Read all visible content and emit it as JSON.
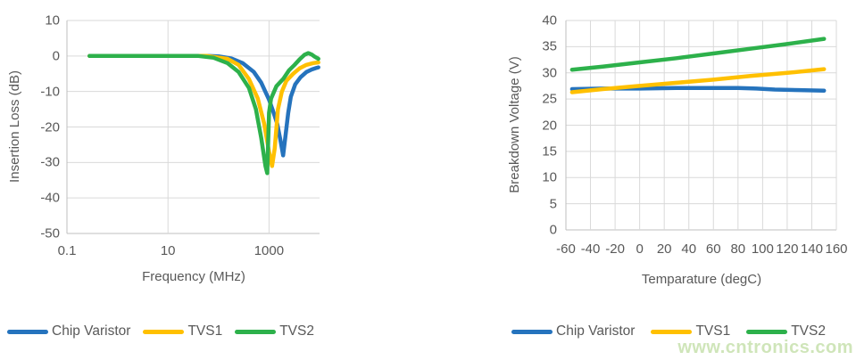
{
  "page": {
    "background": "#ffffff"
  },
  "watermark": {
    "text": "www.cntronics.com",
    "color": "#cde4b6"
  },
  "styles": {
    "grid_color": "#d9d9d9",
    "axis_line_color": "#bfbfbf",
    "text_color": "#595959"
  },
  "chart_data": [
    {
      "type": "line",
      "title": "",
      "xlabel": "Frequency (MHz)",
      "ylabel": "Insertion Loss (dB)",
      "x_scale": "log",
      "xlim": [
        0.1,
        10000
      ],
      "ylim": [
        -50,
        10
      ],
      "x_ticks": [
        0.1,
        10,
        1000
      ],
      "x_tick_labels": [
        "0.1",
        "10",
        "1000"
      ],
      "y_ticks": [
        10,
        0,
        -10,
        -20,
        -30,
        -40,
        -50
      ],
      "y_tick_labels": [
        "10",
        "0",
        "-10",
        "-20",
        "-30",
        "-40",
        "-50"
      ],
      "grid": "on",
      "legend_position": "bottom",
      "series": [
        {
          "name": "Chip Varistor",
          "color": "#2573BD",
          "points": [
            [
              0.28,
              0
            ],
            [
              1,
              0
            ],
            [
              10,
              0
            ],
            [
              60,
              0
            ],
            [
              100,
              -0.1
            ],
            [
              180,
              -0.7
            ],
            [
              300,
              -2
            ],
            [
              500,
              -4.5
            ],
            [
              700,
              -7.5
            ],
            [
              1000,
              -12.3
            ],
            [
              1200,
              -15.5
            ],
            [
              1450,
              -19
            ],
            [
              1700,
              -24
            ],
            [
              1900,
              -28
            ],
            [
              2100,
              -23
            ],
            [
              2400,
              -16
            ],
            [
              2700,
              -11.5
            ],
            [
              3300,
              -8
            ],
            [
              4200,
              -6
            ],
            [
              5500,
              -4.5
            ],
            [
              7000,
              -3.8
            ],
            [
              8500,
              -3.4
            ],
            [
              9500,
              -3.2
            ]
          ]
        },
        {
          "name": "TVS1",
          "color": "#FFC000",
          "points": [
            [
              0.28,
              0
            ],
            [
              1,
              0
            ],
            [
              10,
              0
            ],
            [
              60,
              0
            ],
            [
              150,
              -0.8
            ],
            [
              250,
              -2.5
            ],
            [
              400,
              -6.5
            ],
            [
              600,
              -12
            ],
            [
              800,
              -19
            ],
            [
              1000,
              -27
            ],
            [
              1150,
              -31
            ],
            [
              1300,
              -26
            ],
            [
              1500,
              -15
            ],
            [
              1800,
              -10
            ],
            [
              2200,
              -7
            ],
            [
              3000,
              -5
            ],
            [
              4000,
              -3.5
            ],
            [
              5500,
              -2.5
            ],
            [
              7500,
              -2
            ],
            [
              9500,
              -1.8
            ]
          ]
        },
        {
          "name": "TVS2",
          "color": "#2DB14B",
          "points": [
            [
              0.28,
              0
            ],
            [
              1,
              0
            ],
            [
              10,
              0
            ],
            [
              40,
              0
            ],
            [
              80,
              -0.5
            ],
            [
              150,
              -2
            ],
            [
              250,
              -4.5
            ],
            [
              400,
              -9
            ],
            [
              550,
              -15
            ],
            [
              700,
              -23
            ],
            [
              850,
              -31
            ],
            [
              920,
              -33
            ],
            [
              1000,
              -16
            ],
            [
              1100,
              -12
            ],
            [
              1400,
              -8.5
            ],
            [
              1900,
              -6.5
            ],
            [
              2500,
              -4
            ],
            [
              3200,
              -2.5
            ],
            [
              4000,
              -1
            ],
            [
              5000,
              0.3
            ],
            [
              6000,
              0.8
            ],
            [
              7000,
              0.4
            ],
            [
              8000,
              -0.2
            ],
            [
              9500,
              -0.8
            ]
          ]
        }
      ]
    },
    {
      "type": "line",
      "title": "",
      "xlabel": "Temparature (degC)",
      "ylabel": "Breakdown Voltage (V)",
      "x_scale": "linear",
      "xlim": [
        -60,
        160
      ],
      "ylim": [
        0,
        40
      ],
      "x_ticks": [
        -60,
        -40,
        -20,
        0,
        20,
        40,
        60,
        80,
        100,
        120,
        140,
        160
      ],
      "x_tick_labels": [
        "-60",
        "-40",
        "-20",
        "0",
        "20",
        "40",
        "60",
        "80",
        "100",
        "120",
        "140",
        "160"
      ],
      "y_ticks": [
        40,
        35,
        30,
        25,
        20,
        15,
        10,
        5,
        0
      ],
      "y_tick_labels": [
        "40",
        "35",
        "30",
        "25",
        "20",
        "15",
        "10",
        "5",
        "0"
      ],
      "grid": "on",
      "legend_position": "bottom",
      "series": [
        {
          "name": "Chip Varistor",
          "color": "#2573BD",
          "points": [
            [
              -55,
              26.9
            ],
            [
              -30,
              27
            ],
            [
              0,
              27
            ],
            [
              30,
              27.1
            ],
            [
              60,
              27.1
            ],
            [
              80,
              27.1
            ],
            [
              95,
              27
            ],
            [
              110,
              26.8
            ],
            [
              130,
              26.7
            ],
            [
              150,
              26.6
            ]
          ]
        },
        {
          "name": "TVS1",
          "color": "#FFC000",
          "points": [
            [
              -55,
              26.3
            ],
            [
              -30,
              26.9
            ],
            [
              0,
              27.5
            ],
            [
              30,
              28.1
            ],
            [
              60,
              28.7
            ],
            [
              90,
              29.4
            ],
            [
              120,
              30.0
            ],
            [
              150,
              30.7
            ]
          ]
        },
        {
          "name": "TVS2",
          "color": "#2DB14B",
          "points": [
            [
              -55,
              30.6
            ],
            [
              -30,
              31.2
            ],
            [
              0,
              32.0
            ],
            [
              30,
              32.8
            ],
            [
              60,
              33.7
            ],
            [
              90,
              34.6
            ],
            [
              120,
              35.5
            ],
            [
              150,
              36.5
            ]
          ]
        }
      ]
    }
  ]
}
